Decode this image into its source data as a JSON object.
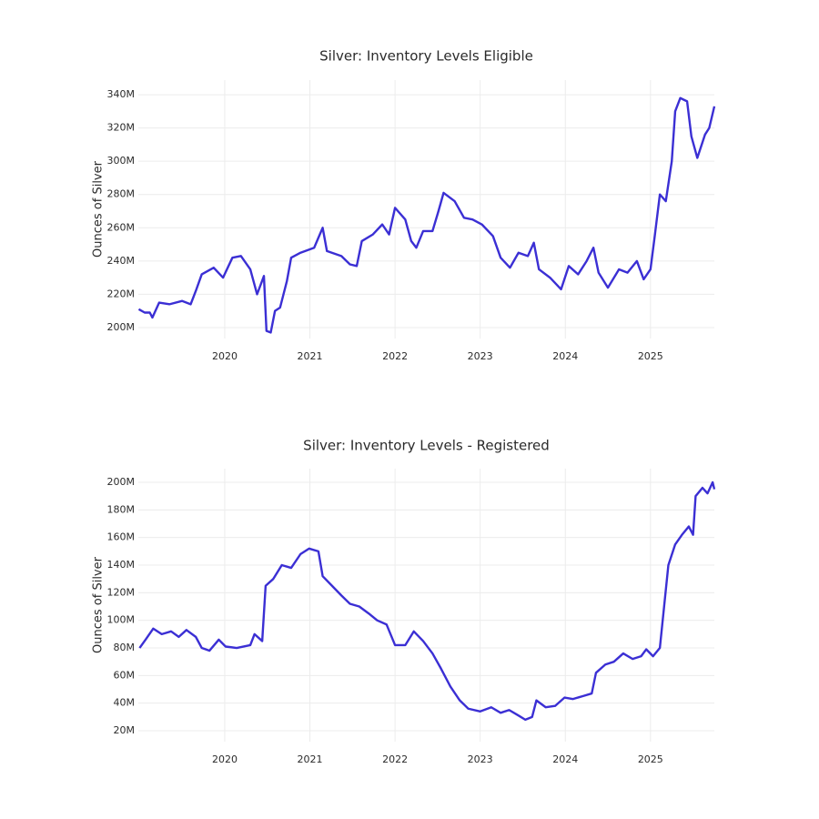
{
  "chart_data": [
    {
      "type": "line",
      "title": "Silver: Inventory Levels Eligible",
      "ylabel": "Ounces of Silver",
      "xlim": [
        2018.985,
        2025.75
      ],
      "xticks": [
        2020,
        2021,
        2022,
        2023,
        2024,
        2025
      ],
      "ylim": [
        193.4,
        348.8
      ],
      "yticks": [
        {
          "value": 200,
          "label": "200M"
        },
        {
          "value": 220,
          "label": "220M"
        },
        {
          "value": 240,
          "label": "240M"
        },
        {
          "value": 260,
          "label": "260M"
        },
        {
          "value": 280,
          "label": "280M"
        },
        {
          "value": 300,
          "label": "300M"
        },
        {
          "value": 320,
          "label": "320M"
        },
        {
          "value": 340,
          "label": "340M"
        }
      ],
      "grid": true,
      "series": [
        {
          "color": "#3b2fd4",
          "x": [
            2018.99,
            2019.06,
            2019.12,
            2019.15,
            2019.23,
            2019.35,
            2019.5,
            2019.6,
            2019.66,
            2019.73,
            2019.87,
            2019.98,
            2020.09,
            2020.19,
            2020.3,
            2020.38,
            2020.46,
            2020.49,
            2020.54,
            2020.59,
            2020.65,
            2020.73,
            2020.78,
            2020.89,
            2021.05,
            2021.15,
            2021.2,
            2021.37,
            2021.47,
            2021.55,
            2021.61,
            2021.74,
            2021.85,
            2021.93,
            2022.0,
            2022.12,
            2022.19,
            2022.25,
            2022.33,
            2022.44,
            2022.51,
            2022.57,
            2022.7,
            2022.81,
            2022.91,
            2023.02,
            2023.15,
            2023.24,
            2023.35,
            2023.45,
            2023.56,
            2023.63,
            2023.69,
            2023.82,
            2023.95,
            2024.04,
            2024.15,
            2024.25,
            2024.33,
            2024.39,
            2024.5,
            2024.63,
            2024.73,
            2024.84,
            2024.92,
            2025.0,
            2025.05,
            2025.11,
            2025.18,
            2025.25,
            2025.29,
            2025.35,
            2025.43,
            2025.48,
            2025.55,
            2025.64,
            2025.69,
            2025.75
          ],
          "values": [
            211,
            209,
            209,
            206,
            215,
            214,
            216,
            214,
            222,
            232,
            236,
            230,
            242,
            243,
            235,
            220,
            231,
            198,
            197,
            210,
            212,
            228,
            242,
            245,
            248,
            260,
            246,
            243,
            238,
            237,
            252,
            256,
            262,
            256,
            272,
            265,
            252,
            248,
            258,
            258,
            270,
            281,
            276,
            266,
            265,
            262,
            255,
            242,
            236,
            245,
            243,
            251,
            235,
            230,
            223,
            237,
            232,
            240,
            248,
            233,
            224,
            235,
            233,
            240,
            229,
            235,
            255,
            280,
            276,
            300,
            330,
            338,
            336,
            315,
            302,
            316,
            320,
            333
          ]
        }
      ]
    },
    {
      "type": "line",
      "title": "Silver: Inventory Levels - Registered",
      "ylabel": "Ounces of Silver",
      "xlim": [
        2018.985,
        2025.75
      ],
      "xticks": [
        2020,
        2021,
        2022,
        2023,
        2024,
        2025
      ],
      "ylim": [
        12.1,
        209.9
      ],
      "yticks": [
        {
          "value": 20,
          "label": "20M"
        },
        {
          "value": 40,
          "label": "40M"
        },
        {
          "value": 60,
          "label": "60M"
        },
        {
          "value": 80,
          "label": "80M"
        },
        {
          "value": 100,
          "label": "100M"
        },
        {
          "value": 120,
          "label": "120M"
        },
        {
          "value": 140,
          "label": "140M"
        },
        {
          "value": 160,
          "label": "160M"
        },
        {
          "value": 180,
          "label": "180M"
        },
        {
          "value": 200,
          "label": "200M"
        }
      ],
      "grid": true,
      "series": [
        {
          "color": "#3b2fd4",
          "x": [
            2019.0,
            2019.07,
            2019.16,
            2019.26,
            2019.37,
            2019.46,
            2019.55,
            2019.66,
            2019.73,
            2019.82,
            2019.93,
            2020.01,
            2020.14,
            2020.3,
            2020.35,
            2020.44,
            2020.48,
            2020.57,
            2020.67,
            2020.78,
            2020.89,
            2020.99,
            2021.1,
            2021.15,
            2021.26,
            2021.37,
            2021.47,
            2021.58,
            2021.69,
            2021.79,
            2021.9,
            2022.0,
            2022.12,
            2022.22,
            2022.33,
            2022.44,
            2022.54,
            2022.65,
            2022.76,
            2022.86,
            2023.0,
            2023.13,
            2023.24,
            2023.34,
            2023.45,
            2023.53,
            2023.61,
            2023.66,
            2023.77,
            2023.88,
            2023.99,
            2024.09,
            2024.2,
            2024.31,
            2024.36,
            2024.47,
            2024.57,
            2024.68,
            2024.79,
            2024.89,
            2024.95,
            2025.03,
            2025.11,
            2025.16,
            2025.21,
            2025.29,
            2025.37,
            2025.45,
            2025.5,
            2025.53,
            2025.61,
            2025.67,
            2025.73,
            2025.75
          ],
          "values": [
            80,
            86,
            94,
            90,
            92,
            88,
            93,
            88,
            80,
            78,
            86,
            81,
            80,
            82,
            90,
            85,
            125,
            130,
            140,
            138,
            148,
            152,
            150,
            132,
            125,
            118,
            112,
            110,
            105,
            100,
            97,
            82,
            82,
            92,
            85,
            76,
            65,
            52,
            42,
            36,
            34,
            37,
            33,
            35,
            31,
            28,
            30,
            42,
            37,
            38,
            44,
            43,
            45,
            47,
            62,
            68,
            70,
            76,
            72,
            74,
            79,
            74,
            80,
            110,
            140,
            155,
            162,
            168,
            162,
            190,
            196,
            192,
            200,
            195
          ]
        }
      ]
    }
  ]
}
